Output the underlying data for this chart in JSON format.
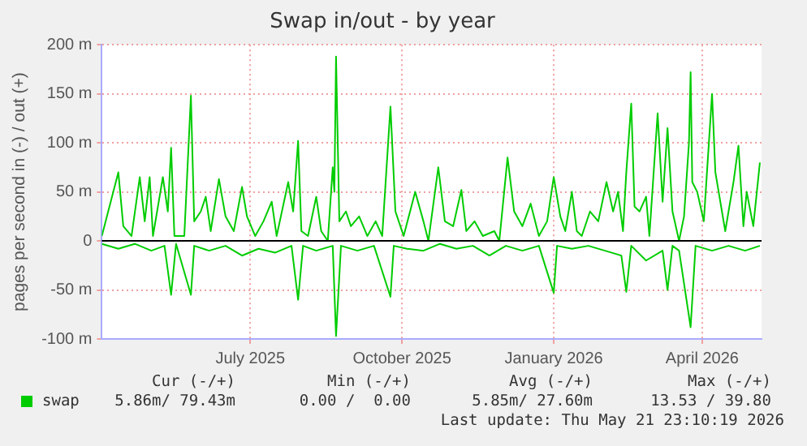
{
  "chart_data": {
    "type": "line",
    "title": "Swap in/out - by year",
    "ylabel": "pages per second in (-) / out (+)",
    "xlim": [
      "2025-04-16",
      "2026-05-21"
    ],
    "xticks": [
      {
        "value": "2025-07-15",
        "label": "July 2025"
      },
      {
        "value": "2025-10-15",
        "label": "October 2025"
      },
      {
        "value": "2026-01-15",
        "label": "January 2026"
      },
      {
        "value": "2026-04-15",
        "label": "April 2026"
      }
    ],
    "ylim": [
      -100,
      200
    ],
    "yticks": [
      {
        "value": -100,
        "label": "-100 m"
      },
      {
        "value": -50,
        "label": "-50 m"
      },
      0,
      {
        "value": 50,
        "label": "50 m"
      },
      {
        "value": 100,
        "label": "100 m"
      },
      {
        "value": 150,
        "label": "150 m"
      },
      {
        "value": 200,
        "label": "200 m"
      }
    ],
    "grid": true,
    "legend": "bottom left",
    "marker": "none",
    "line_style": "solid",
    "ref_lines": [
      {
        "axis": "y",
        "value": 0,
        "color": "#000000"
      }
    ],
    "series": [
      {
        "name": "swap",
        "color": "#00cc00",
        "x": [
          "2025-04-16",
          "2025-04-26",
          "2025-04-29",
          "2025-05-04",
          "2025-05-09",
          "2025-05-12",
          "2025-05-15",
          "2025-05-17",
          "2025-05-23",
          "2025-05-26",
          "2025-05-28",
          "2025-05-30",
          "2025-06-05",
          "2025-06-09",
          "2025-06-11",
          "2025-06-15",
          "2025-06-18",
          "2025-06-21",
          "2025-06-26",
          "2025-06-30",
          "2025-07-05",
          "2025-07-10",
          "2025-07-13",
          "2025-07-18",
          "2025-07-23",
          "2025-07-28",
          "2025-07-31",
          "2025-08-07",
          "2025-08-10",
          "2025-08-13",
          "2025-08-15",
          "2025-08-19",
          "2025-08-24",
          "2025-08-27",
          "2025-08-31",
          "2025-09-03",
          "2025-09-04",
          "2025-09-05",
          "2025-09-07",
          "2025-09-11",
          "2025-09-14",
          "2025-09-19",
          "2025-09-24",
          "2025-09-29",
          "2025-10-03",
          "2025-10-08",
          "2025-10-11",
          "2025-10-14",
          "2025-10-16",
          "2025-10-23",
          "2025-10-28",
          "2025-10-31",
          "2025-11-06",
          "2025-11-10",
          "2025-11-15",
          "2025-11-20",
          "2025-11-23",
          "2025-11-28",
          "2025-12-03",
          "2025-12-10",
          "2025-12-13",
          "2025-12-18",
          "2025-12-22",
          "2025-12-27",
          "2026-01-01",
          "2026-01-06",
          "2026-01-11",
          "2026-01-15",
          "2026-01-19",
          "2026-01-22",
          "2026-01-26",
          "2026-01-29",
          "2026-02-01",
          "2026-02-06",
          "2026-02-11",
          "2026-02-16",
          "2026-02-20",
          "2026-02-23",
          "2026-02-26",
          "2026-02-28",
          "2026-03-03",
          "2026-03-05",
          "2026-03-08",
          "2026-03-12",
          "2026-03-14",
          "2026-03-19",
          "2026-03-22",
          "2026-03-25",
          "2026-03-28",
          "2026-04-01",
          "2026-04-04",
          "2026-04-07",
          "2026-04-08",
          "2026-04-09",
          "2026-04-12",
          "2026-04-16",
          "2026-04-21",
          "2026-04-23",
          "2026-04-26",
          "2026-04-29",
          "2026-05-04",
          "2026-05-07",
          "2026-05-10",
          "2026-05-12",
          "2026-05-16",
          "2026-05-20"
        ],
        "values": [
          5,
          70,
          15,
          5,
          65,
          20,
          65,
          5,
          65,
          30,
          95,
          5,
          5,
          148,
          20,
          30,
          45,
          10,
          63,
          25,
          10,
          55,
          25,
          5,
          20,
          40,
          5,
          60,
          30,
          102,
          10,
          5,
          45,
          10,
          0,
          75,
          50,
          188,
          20,
          30,
          15,
          25,
          5,
          20,
          5,
          137,
          30,
          15,
          5,
          50,
          20,
          0,
          75,
          20,
          15,
          52,
          10,
          20,
          5,
          10,
          0,
          85,
          30,
          15,
          38,
          5,
          20,
          65,
          25,
          10,
          50,
          10,
          5,
          30,
          20,
          60,
          30,
          50,
          10,
          70,
          140,
          35,
          30,
          45,
          5,
          130,
          40,
          115,
          30,
          0,
          25,
          100,
          172,
          60,
          50,
          20,
          150,
          70,
          40,
          10,
          60,
          97,
          15,
          50,
          15,
          80
        ]
      },
      {
        "color": "#00cc00",
        "x": [
          "2025-04-16",
          "2025-04-26",
          "2025-05-06",
          "2025-05-16",
          "2025-05-24",
          "2025-05-28",
          "2025-05-31",
          "2025-06-09",
          "2025-06-11",
          "2025-06-20",
          "2025-06-30",
          "2025-07-10",
          "2025-07-20",
          "2025-07-30",
          "2025-08-09",
          "2025-08-13",
          "2025-08-16",
          "2025-08-24",
          "2025-09-03",
          "2025-09-05",
          "2025-09-08",
          "2025-09-18",
          "2025-09-28",
          "2025-10-08",
          "2025-10-10",
          "2025-10-18",
          "2025-10-28",
          "2025-11-07",
          "2025-11-17",
          "2025-11-27",
          "2025-12-07",
          "2025-12-17",
          "2025-12-27",
          "2026-01-06",
          "2026-01-15",
          "2026-01-17",
          "2026-01-26",
          "2026-02-05",
          "2026-02-15",
          "2026-02-25",
          "2026-02-28",
          "2026-03-03",
          "2026-03-12",
          "2026-03-22",
          "2026-03-25",
          "2026-03-28",
          "2026-04-01",
          "2026-04-08",
          "2026-04-11",
          "2026-04-21",
          "2026-05-01",
          "2026-05-11",
          "2026-05-20"
        ],
        "values": [
          -3,
          -8,
          -3,
          -10,
          -5,
          -55,
          -3,
          -55,
          -5,
          -10,
          -5,
          -15,
          -8,
          -12,
          -5,
          -60,
          -5,
          -10,
          -5,
          -97,
          -5,
          -10,
          -5,
          -57,
          -5,
          -8,
          -10,
          -3,
          -8,
          -5,
          -15,
          -5,
          -10,
          -5,
          -53,
          -5,
          -8,
          -5,
          -10,
          -15,
          -52,
          -5,
          -20,
          -10,
          -50,
          -5,
          -10,
          -88,
          -5,
          -10,
          -5,
          -10,
          -5
        ]
      }
    ],
    "annotations": [
      "Cur (-/+)",
      "Min (-/+)",
      "Avg (-/+)",
      "Max (-/+)",
      "5.86m/ 79.43m",
      "0.00 /  0.00",
      "5.85m/ 27.60m",
      "13.53 / 39.80",
      "Last update: Thu May 21 23:10:19 2026"
    ]
  }
}
